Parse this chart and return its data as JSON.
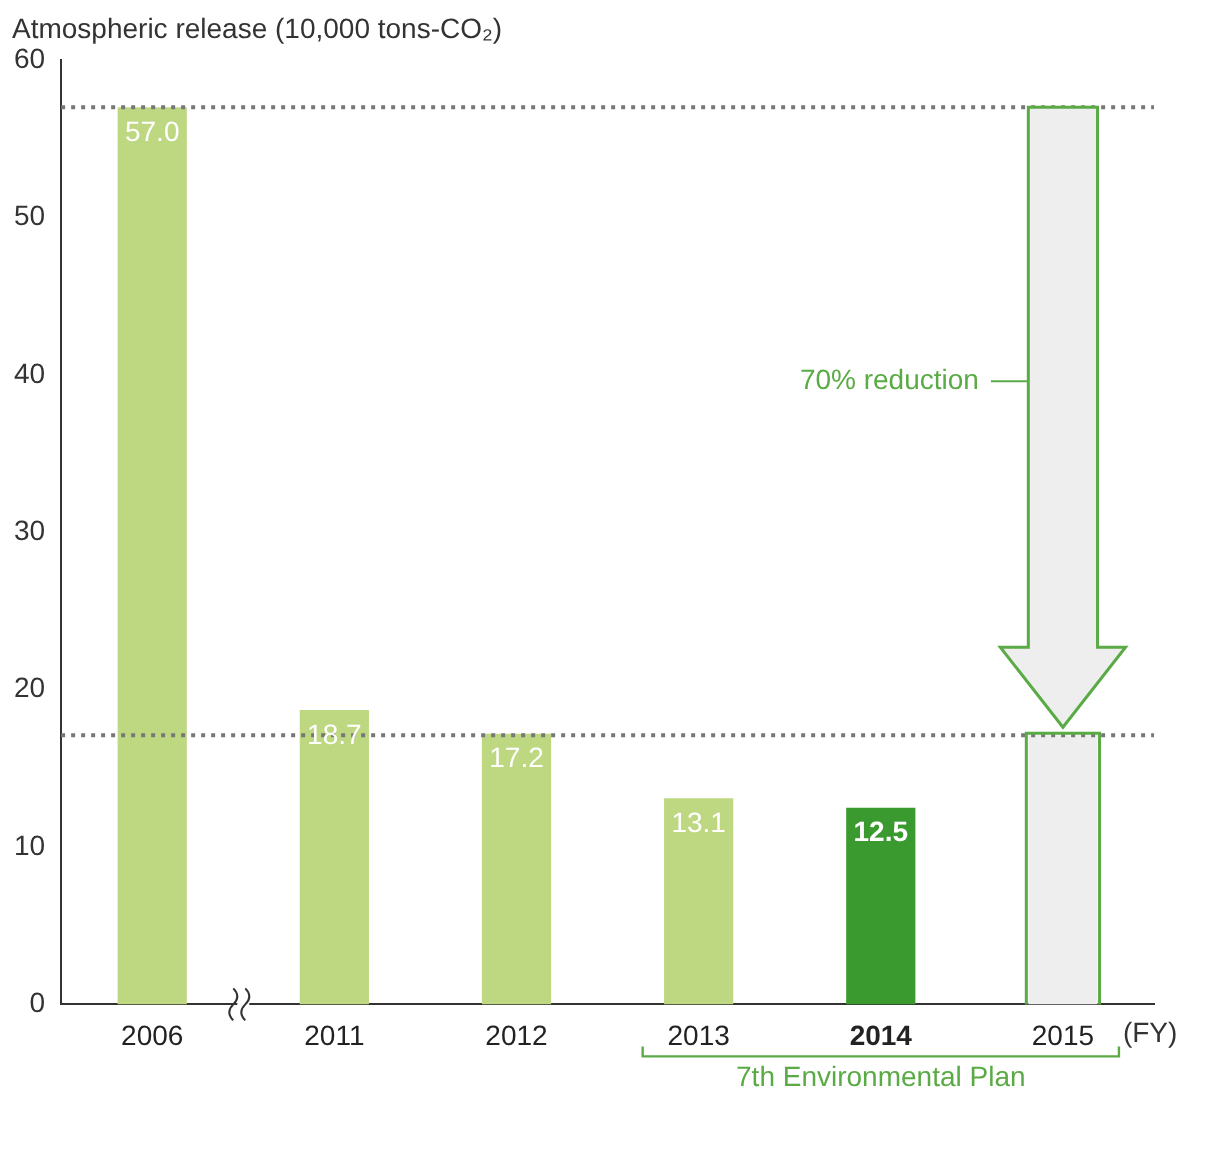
{
  "chart_data": {
    "type": "bar",
    "ylabel": "Atmospheric release (10,000 tons-CO₂)",
    "xlabel": "(FY)",
    "categories": [
      "2006",
      "2011",
      "2012",
      "2013",
      "2014",
      "2015"
    ],
    "values": [
      57.0,
      18.7,
      17.2,
      13.1,
      12.5,
      17.1
    ],
    "colors": [
      "#bdd881",
      "#bdd881",
      "#bdd881",
      "#bdd881",
      "#3a9a2f",
      "#eeeeee"
    ],
    "value_labels": [
      "57.0",
      "18.7",
      "17.2",
      "13.1",
      "12.5",
      null
    ],
    "ylim": [
      0,
      60
    ],
    "yticks": [
      0,
      10,
      20,
      30,
      40,
      50,
      60
    ],
    "grid": false,
    "ref_lines": [
      {
        "axis": "y",
        "value": 57,
        "line_style": "dotted",
        "color": "#777777"
      },
      {
        "axis": "y",
        "value": 17.1,
        "line_style": "dotted",
        "color": "#777777"
      }
    ],
    "annotations": [
      "70% reduction",
      "7th Environmental Plan"
    ]
  }
}
